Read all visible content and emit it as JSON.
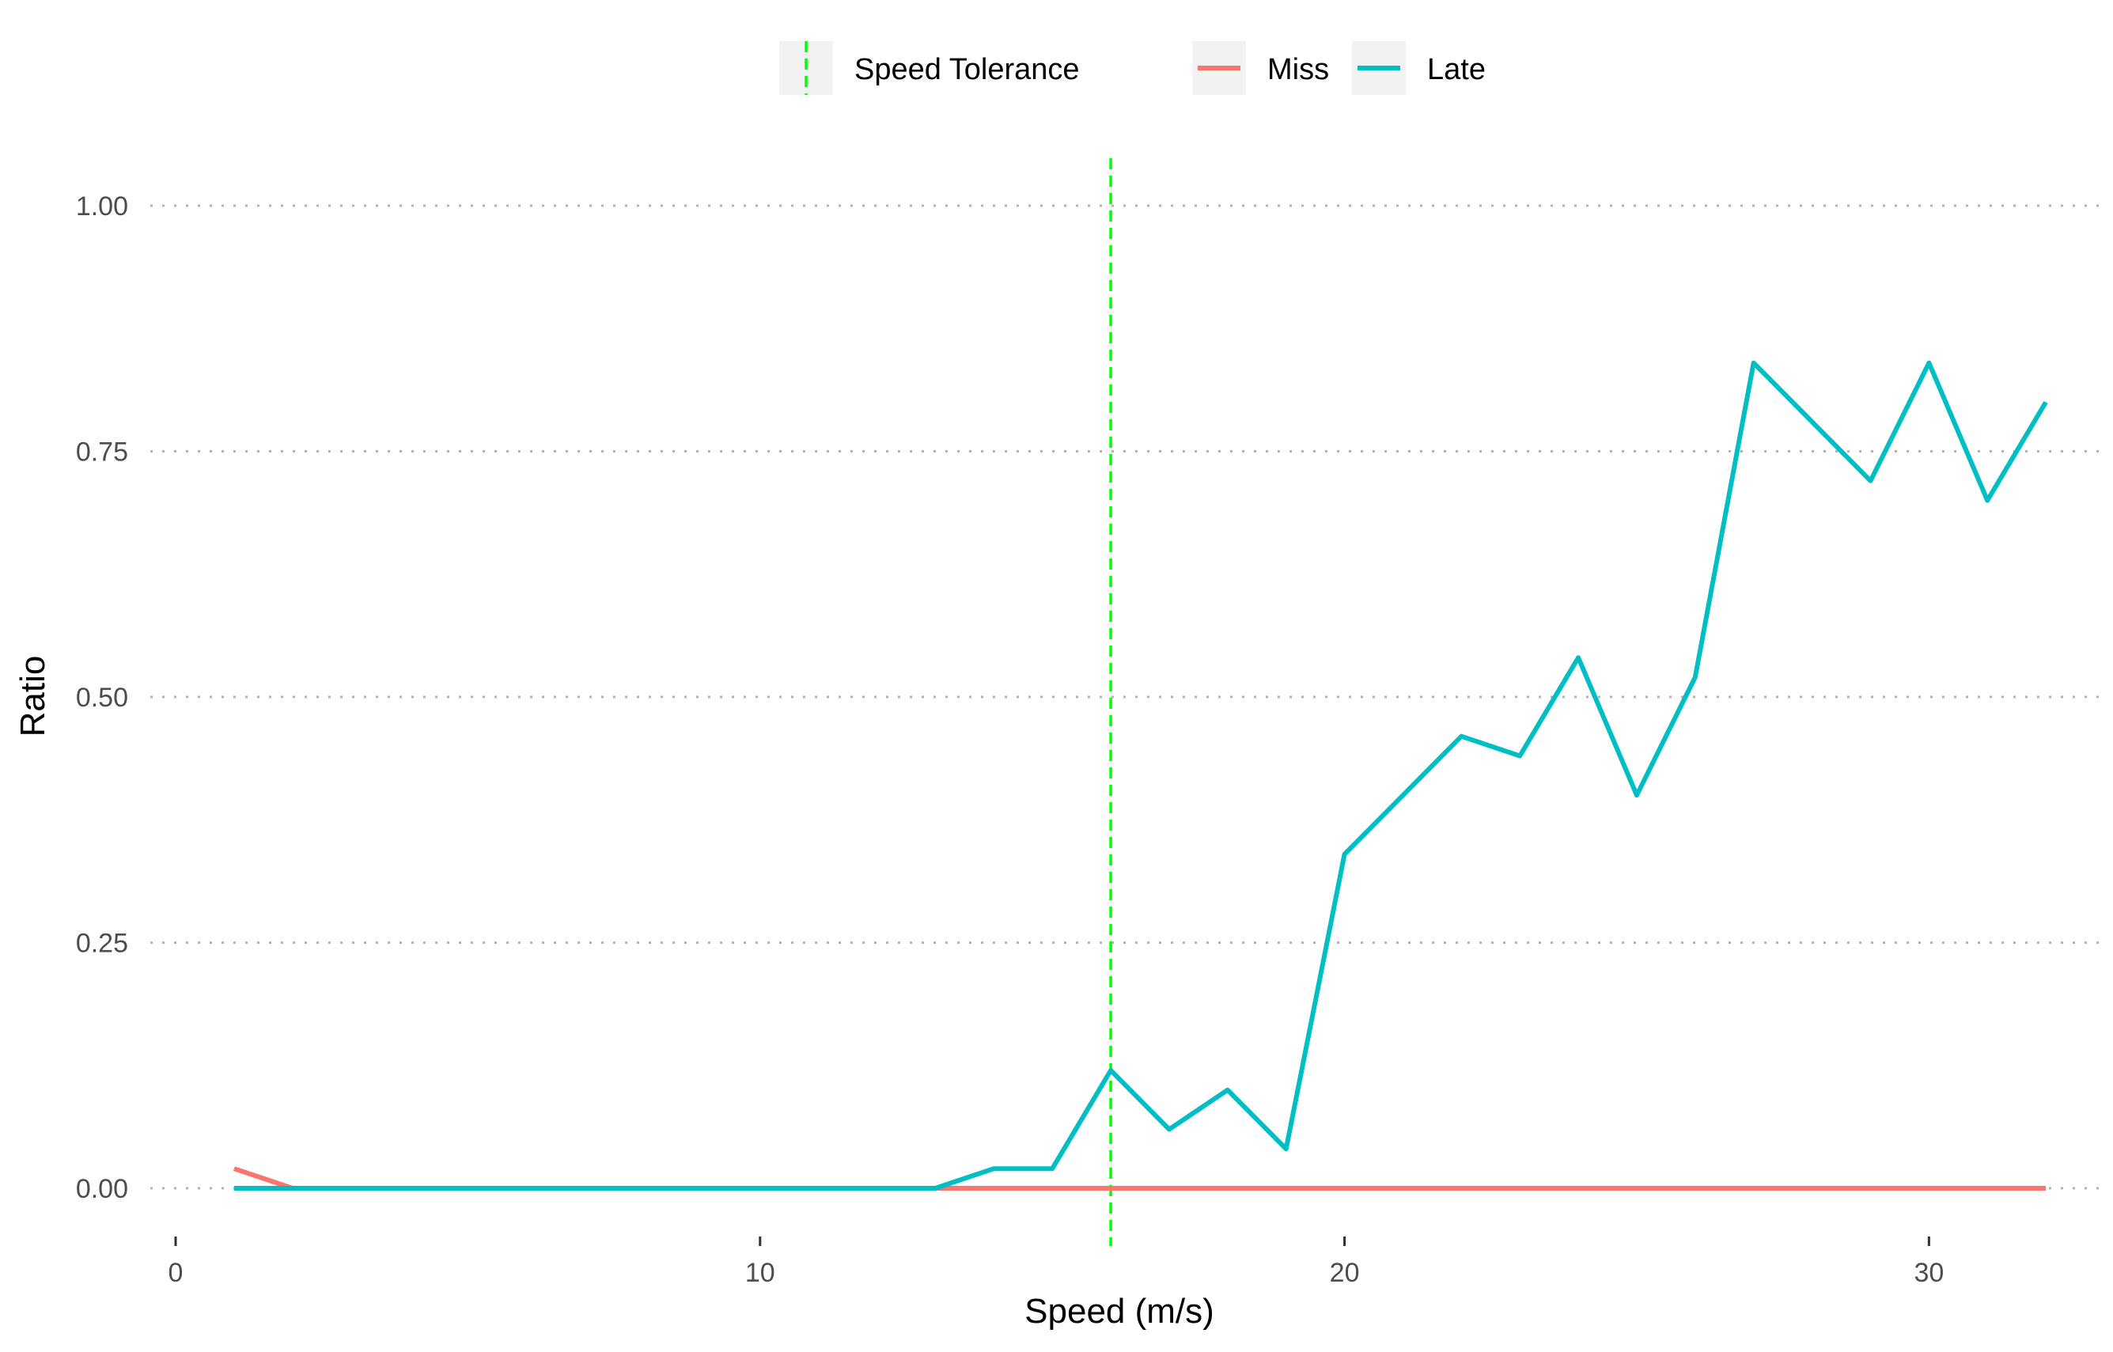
{
  "chart_data": {
    "type": "line",
    "title": "",
    "xlabel": "Speed (m/s)",
    "ylabel": "Ratio",
    "xlim": [
      0,
      33
    ],
    "ylim": [
      0,
      1
    ],
    "x_ticks": [
      0,
      10,
      20,
      30
    ],
    "x_tick_labels": [
      "0",
      "10",
      "20",
      "30"
    ],
    "y_ticks": [
      0,
      0.25,
      0.5,
      0.75,
      1
    ],
    "y_tick_labels": [
      "0.00",
      "0.25",
      "0.50",
      "0.75",
      "1.00"
    ],
    "grid": "horizontal-dotted",
    "legend_position": "top",
    "reference_lines": [
      {
        "name": "Speed Tolerance",
        "axis": "x",
        "value": 16,
        "style": "dashed",
        "color": "#00ff00"
      }
    ],
    "x": [
      1,
      2,
      3,
      4,
      5,
      6,
      7,
      8,
      9,
      10,
      11,
      12,
      13,
      14,
      15,
      16,
      17,
      18,
      19,
      20,
      21,
      22,
      23,
      24,
      25,
      26,
      27,
      28,
      29,
      30,
      31,
      32
    ],
    "series": [
      {
        "name": "Miss",
        "color": "#f8766d",
        "values": [
          0.02,
          0,
          0,
          0,
          0,
          0,
          0,
          0,
          0,
          0,
          0,
          0,
          0,
          0,
          0,
          0,
          0,
          0,
          0,
          0,
          0,
          0,
          0,
          0,
          0,
          0,
          0,
          0,
          0,
          0,
          0,
          0
        ]
      },
      {
        "name": "Late",
        "color": "#00bfc4",
        "values": [
          0,
          0,
          0,
          0,
          0,
          0,
          0,
          0,
          0,
          0,
          0,
          0,
          0,
          0.02,
          0.02,
          0.12,
          0.06,
          0.1,
          0.04,
          0.34,
          0.4,
          0.46,
          0.44,
          0.54,
          0.4,
          0.52,
          0.84,
          0.78,
          0.72,
          0.84,
          0.7,
          0.8
        ]
      }
    ]
  }
}
